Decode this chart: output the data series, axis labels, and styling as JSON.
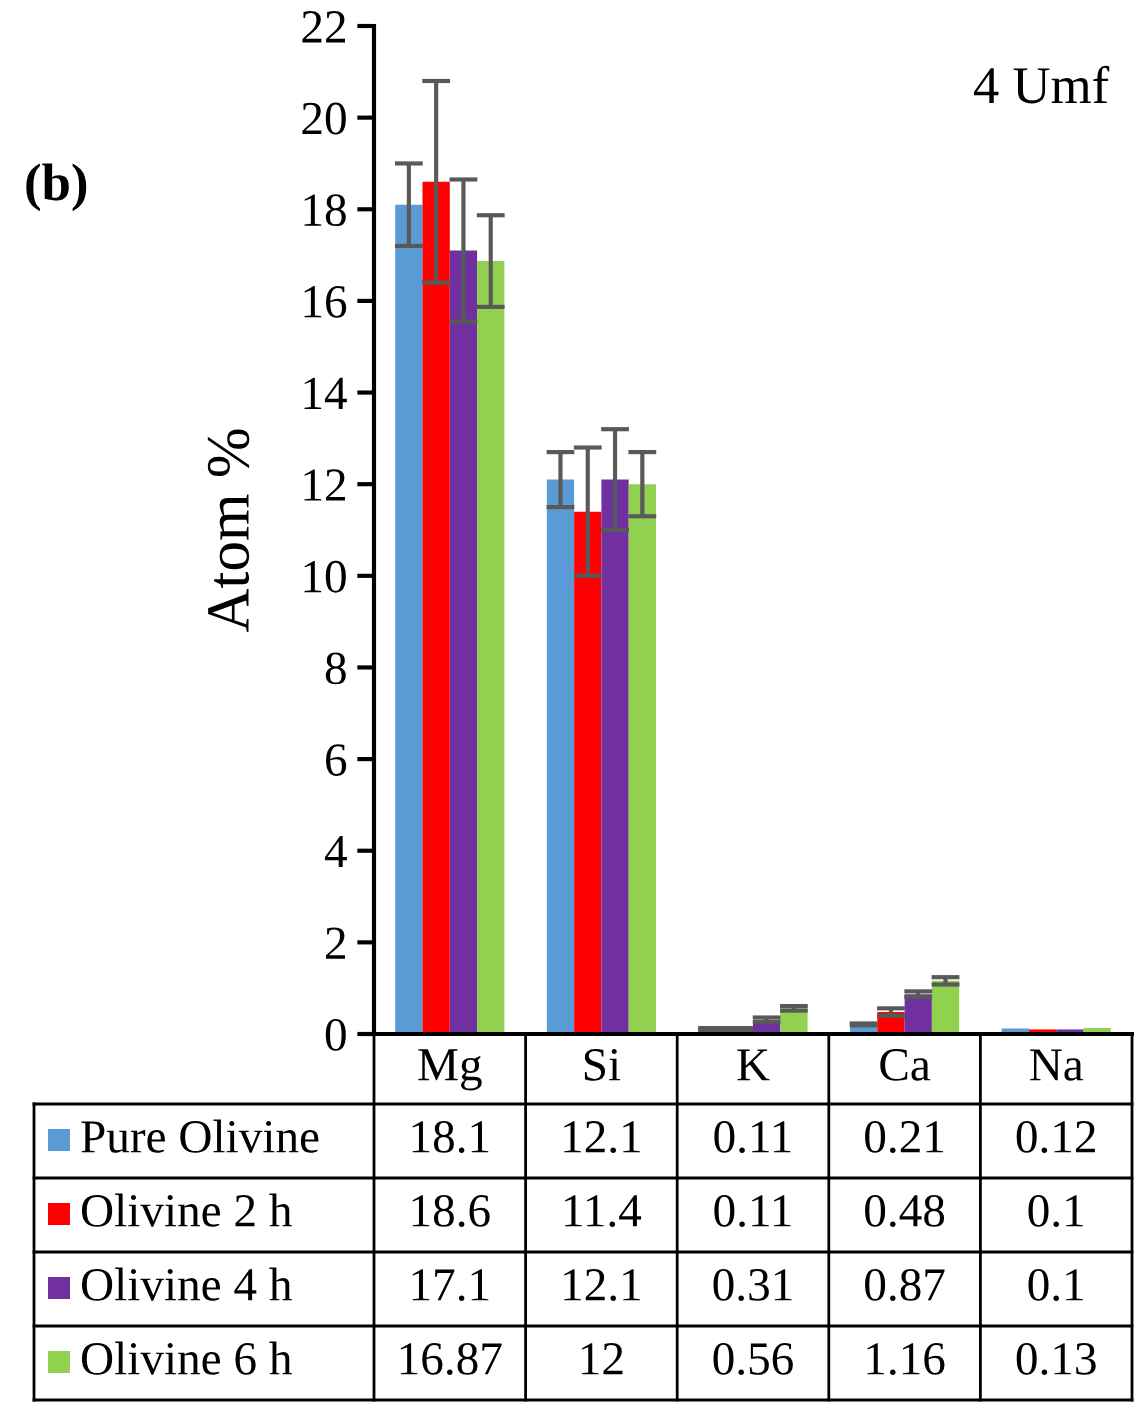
{
  "chart_data": {
    "type": "bar",
    "ylabel": "Atom %",
    "categories": [
      "Mg",
      "Si",
      "K",
      "Ca",
      "Na"
    ],
    "series": [
      {
        "name": "Pure Olivine",
        "color": "#5b9bd5",
        "values": [
          18.1,
          12.1,
          0.11,
          0.21,
          0.12
        ],
        "errors": [
          0.9,
          0.6,
          0.02,
          0.02,
          null
        ]
      },
      {
        "name": "Olivine 2 h",
        "color": "#ff0000",
        "values": [
          18.6,
          11.4,
          0.11,
          0.48,
          0.1
        ],
        "errors": [
          2.2,
          1.4,
          0.02,
          0.08,
          null
        ]
      },
      {
        "name": "Olivine 4 h",
        "color": "#7030a0",
        "values": [
          17.1,
          12.1,
          0.31,
          0.87,
          0.1
        ],
        "errors": [
          1.55,
          1.1,
          0.05,
          0.06,
          null
        ]
      },
      {
        "name": "Olivine 6 h",
        "color": "#92d050",
        "values": [
          16.87,
          12,
          0.56,
          1.16,
          0.13
        ],
        "errors": [
          1.0,
          0.7,
          0.05,
          0.08,
          null
        ]
      }
    ],
    "ylim": [
      0,
      22
    ],
    "yticks": [
      0,
      2,
      4,
      6,
      8,
      10,
      12,
      14,
      16,
      18,
      20,
      22
    ],
    "grid": false,
    "legend": "bottom",
    "data_labels": true,
    "annotations": [
      "(b)",
      "4 Umf"
    ]
  }
}
